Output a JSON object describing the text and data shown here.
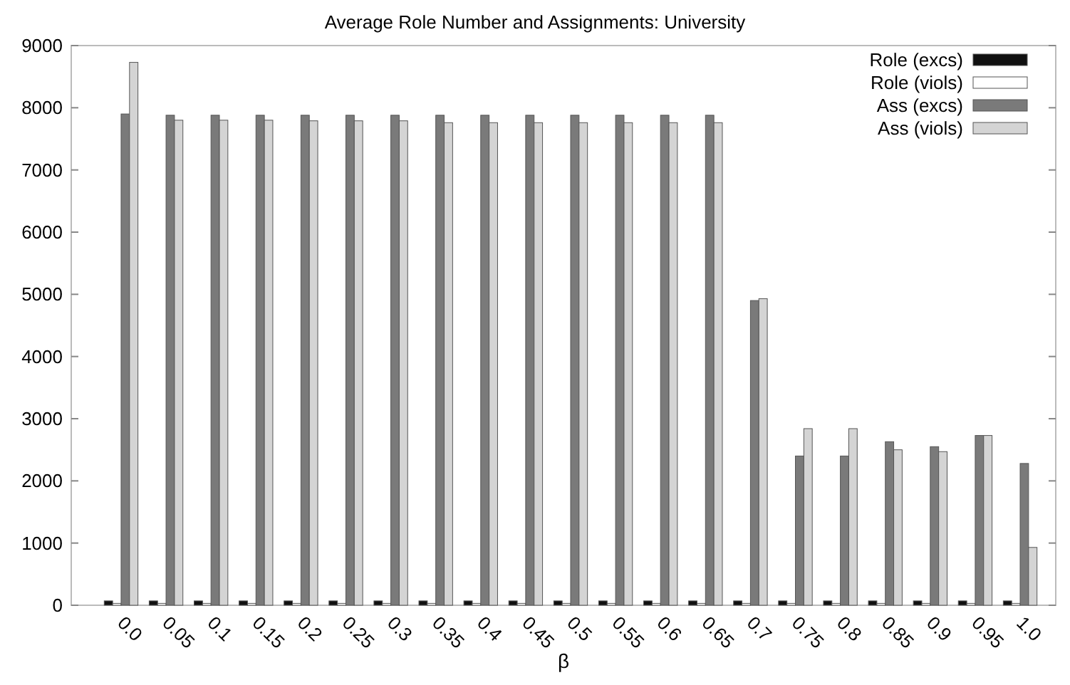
{
  "chart_data": {
    "type": "bar",
    "title": "Average Role Number and Assignments: University",
    "xlabel": "β",
    "categories": [
      "0.0",
      "0.05",
      "0.1",
      "0.15",
      "0.2",
      "0.25",
      "0.3",
      "0.35",
      "0.4",
      "0.45",
      "0.5",
      "0.55",
      "0.6",
      "0.65",
      "0.7",
      "0.75",
      "0.8",
      "0.85",
      "0.9",
      "0.95",
      "1.0"
    ],
    "series": [
      {
        "name": "Role (excs)",
        "color": "#111111",
        "values": [
          70,
          70,
          70,
          70,
          70,
          70,
          70,
          70,
          70,
          70,
          70,
          70,
          70,
          70,
          70,
          70,
          70,
          70,
          70,
          70,
          70
        ]
      },
      {
        "name": "Role (viols)",
        "color": "#ffffff",
        "values": [
          30,
          30,
          30,
          30,
          30,
          30,
          30,
          30,
          30,
          30,
          30,
          30,
          30,
          30,
          30,
          30,
          30,
          30,
          30,
          30,
          30
        ]
      },
      {
        "name": "Ass (excs)",
        "color": "#7a7a7a",
        "values": [
          7900,
          7880,
          7880,
          7880,
          7880,
          7880,
          7880,
          7880,
          7880,
          7880,
          7880,
          7880,
          7880,
          7880,
          4900,
          2400,
          2400,
          2630,
          2550,
          2730,
          2280
        ]
      },
      {
        "name": "Ass (viols)",
        "color": "#d4d4d4",
        "values": [
          8730,
          7800,
          7800,
          7800,
          7790,
          7790,
          7790,
          7760,
          7760,
          7760,
          7760,
          7760,
          7760,
          7760,
          4930,
          2840,
          2840,
          2500,
          2470,
          2730,
          930
        ]
      }
    ],
    "ylim": [
      0,
      9000
    ],
    "yticks": [
      0,
      1000,
      2000,
      3000,
      4000,
      5000,
      6000,
      7000,
      8000,
      9000
    ],
    "grid": false,
    "legend": "top right"
  }
}
